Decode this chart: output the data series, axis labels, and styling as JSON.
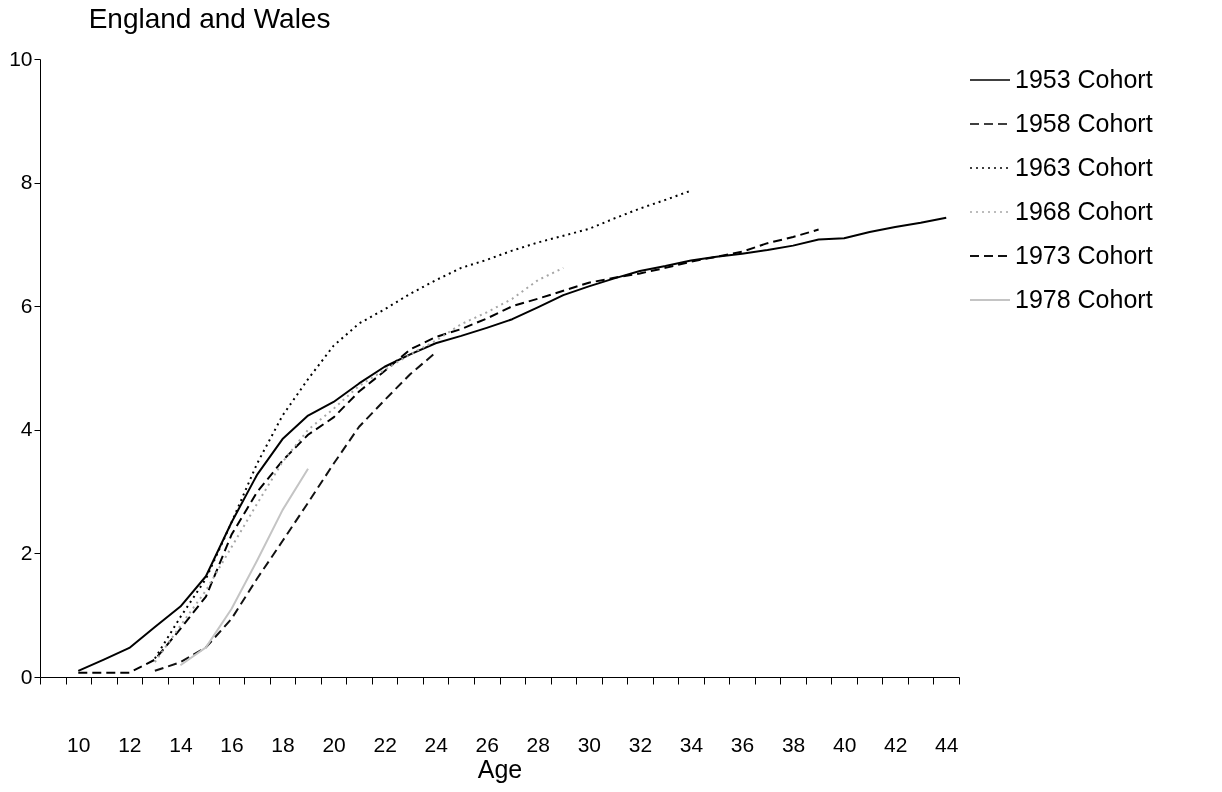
{
  "chart_data": {
    "type": "line",
    "title": "England and Wales",
    "xlabel": "Age",
    "xlim": [
      8.5,
      44.5
    ],
    "xticks": [
      {
        "value": 8.5,
        "label": null
      },
      {
        "value": 9.5,
        "label": null
      },
      10,
      {
        "value": 10.5,
        "label": null
      },
      {
        "value": 11.5,
        "label": null
      },
      12,
      {
        "value": 12.5,
        "label": null
      },
      {
        "value": 13.5,
        "label": null
      },
      14,
      {
        "value": 14.5,
        "label": null
      },
      {
        "value": 15.5,
        "label": null
      },
      16,
      {
        "value": 16.5,
        "label": null
      },
      {
        "value": 17.5,
        "label": null
      },
      18,
      {
        "value": 18.5,
        "label": null
      },
      {
        "value": 19.5,
        "label": null
      },
      20,
      {
        "value": 20.5,
        "label": null
      },
      {
        "value": 21.5,
        "label": null
      },
      22,
      {
        "value": 22.5,
        "label": null
      },
      {
        "value": 23.5,
        "label": null
      },
      24,
      {
        "value": 24.5,
        "label": null
      },
      {
        "value": 25.5,
        "label": null
      },
      26,
      {
        "value": 26.5,
        "label": null
      },
      {
        "value": 27.5,
        "label": null
      },
      28,
      {
        "value": 28.5,
        "label": null
      },
      {
        "value": 29.5,
        "label": null
      },
      30,
      {
        "value": 30.5,
        "label": null
      },
      {
        "value": 31.5,
        "label": null
      },
      32,
      {
        "value": 32.5,
        "label": null
      },
      {
        "value": 33.5,
        "label": null
      },
      34,
      {
        "value": 34.5,
        "label": null
      },
      {
        "value": 35.5,
        "label": null
      },
      36,
      {
        "value": 36.5,
        "label": null
      },
      {
        "value": 37.5,
        "label": null
      },
      38,
      {
        "value": 38.5,
        "label": null
      },
      {
        "value": 39.5,
        "label": null
      },
      40,
      {
        "value": 40.5,
        "label": null
      },
      {
        "value": 41.5,
        "label": null
      },
      42,
      {
        "value": 42.5,
        "label": null
      },
      {
        "value": 43.5,
        "label": null
      },
      44,
      {
        "value": 44.5,
        "label": null
      }
    ],
    "ylim": [
      0,
      10
    ],
    "yticks": [
      0,
      2,
      4,
      6,
      8,
      10
    ],
    "grid": false,
    "legend": "top right",
    "marker": "none",
    "series": [
      {
        "name": "1953 Cohort",
        "color": "#000000",
        "line_style": "solid",
        "x": [
          10,
          11,
          12,
          13,
          14,
          15,
          16,
          17,
          18,
          19,
          20,
          21,
          22,
          23,
          24,
          25,
          26,
          27,
          28,
          29,
          30,
          31,
          32,
          33,
          34,
          35,
          36,
          37,
          38,
          39,
          40,
          41,
          42,
          43,
          44
        ],
        "values": [
          0.1,
          0.28,
          0.47,
          0.81,
          1.14,
          1.63,
          2.5,
          3.27,
          3.85,
          4.23,
          4.45,
          4.75,
          5.02,
          5.22,
          5.4,
          5.52,
          5.65,
          5.79,
          5.98,
          6.18,
          6.32,
          6.45,
          6.57,
          6.65,
          6.74,
          6.8,
          6.85,
          6.91,
          6.98,
          7.08,
          7.1,
          7.2,
          7.28,
          7.35,
          7.43
        ]
      },
      {
        "name": "1958 Cohort",
        "color": "#000000",
        "line_style": "dashed",
        "x": [
          10,
          11,
          12,
          13,
          14,
          15,
          16,
          17,
          18,
          19,
          20,
          21,
          22,
          23,
          24,
          25,
          26,
          27,
          28,
          29,
          30,
          31,
          32,
          33,
          34,
          35,
          36,
          37,
          38,
          39
        ],
        "values": [
          0.07,
          0.07,
          0.07,
          0.28,
          0.78,
          1.3,
          2.3,
          2.99,
          3.5,
          3.92,
          4.2,
          4.62,
          4.95,
          5.3,
          5.5,
          5.63,
          5.8,
          6.0,
          6.12,
          6.25,
          6.38,
          6.46,
          6.53,
          6.62,
          6.72,
          6.8,
          6.88,
          7.02,
          7.12,
          7.24
        ]
      },
      {
        "name": "1963 Cohort",
        "color": "#000000",
        "line_style": "dotted",
        "x": [
          13,
          14,
          15,
          16,
          17,
          18,
          19,
          20,
          21,
          22,
          23,
          24,
          25,
          26,
          27,
          28,
          29,
          30,
          31,
          32,
          33,
          34
        ],
        "values": [
          0.3,
          0.97,
          1.59,
          2.5,
          3.45,
          4.23,
          4.82,
          5.36,
          5.72,
          5.95,
          6.2,
          6.42,
          6.62,
          6.75,
          6.9,
          7.03,
          7.14,
          7.25,
          7.42,
          7.58,
          7.72,
          7.87
        ]
      },
      {
        "name": "1968 Cohort",
        "color": "#a6a6a6",
        "line_style": "dotted",
        "x": [
          13,
          14,
          15,
          16,
          17,
          18,
          19,
          20,
          21,
          22,
          23,
          24,
          25,
          26,
          27,
          28,
          29
        ],
        "values": [
          0.24,
          0.83,
          1.4,
          2.1,
          2.8,
          3.48,
          4.0,
          4.34,
          4.71,
          4.97,
          5.22,
          5.44,
          5.71,
          5.9,
          6.12,
          6.42,
          6.62
        ]
      },
      {
        "name": "1973 Cohort",
        "color": "#111111",
        "line_style": "dashed",
        "x": [
          13,
          14,
          15,
          16,
          17,
          18,
          19,
          20,
          21,
          22,
          23,
          24
        ],
        "values": [
          0.1,
          0.24,
          0.48,
          0.94,
          1.59,
          2.2,
          2.82,
          3.45,
          4.05,
          4.48,
          4.9,
          5.25
        ]
      },
      {
        "name": "1978 Cohort",
        "color": "#c4c4c4",
        "line_style": "solid",
        "x": [
          14,
          15,
          16,
          17,
          18,
          19
        ],
        "values": [
          0.19,
          0.48,
          1.1,
          1.88,
          2.7,
          3.37
        ]
      }
    ]
  }
}
